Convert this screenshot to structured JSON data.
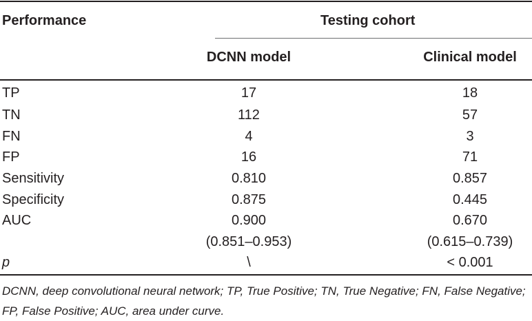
{
  "table": {
    "header": {
      "row_label": "Performance",
      "group_label": "Testing cohort",
      "columns": [
        "DCNN model",
        "Clinical model"
      ]
    },
    "rows": [
      {
        "label": "TP",
        "dcnn": "17",
        "clinical": "18"
      },
      {
        "label": "TN",
        "dcnn": "112",
        "clinical": "57"
      },
      {
        "label": "FN",
        "dcnn": "4",
        "clinical": "3"
      },
      {
        "label": "FP",
        "dcnn": "16",
        "clinical": "71"
      },
      {
        "label": "Sensitivity",
        "dcnn": "0.810",
        "clinical": "0.857"
      },
      {
        "label": "Specificity",
        "dcnn": "0.875",
        "clinical": "0.445"
      },
      {
        "label": "AUC",
        "dcnn": "0.900",
        "clinical": "0.670"
      },
      {
        "label": "",
        "dcnn": "(0.851–0.953)",
        "clinical": "(0.615–0.739)"
      },
      {
        "label": "p",
        "dcnn": "\\",
        "clinical": "< 0.001"
      }
    ],
    "footnote": "DCNN, deep convolutional neural network; TP, True Positive; TN, True Negative; FN, False Negative; FP, False Positive; AUC, area under curve."
  }
}
